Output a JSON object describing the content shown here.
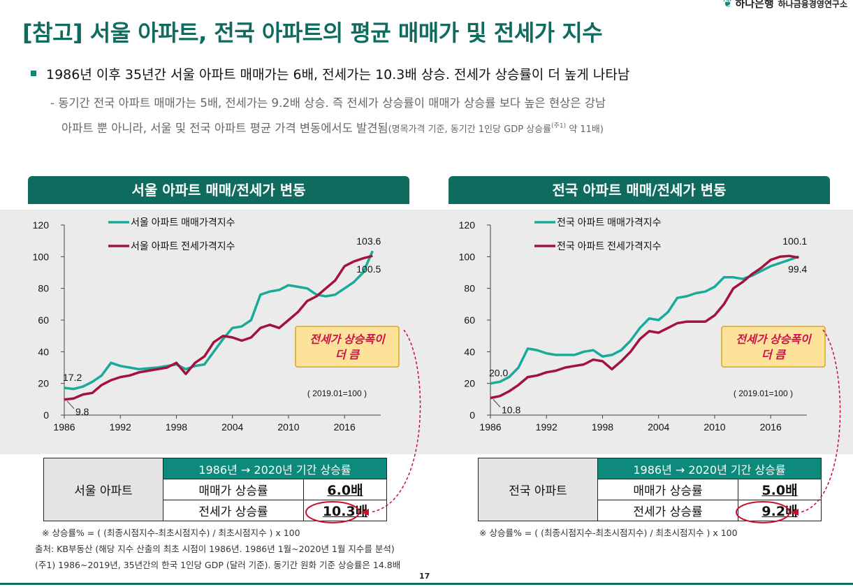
{
  "brand": {
    "logo_text": "하나은행",
    "institute": "하나금융경영연구소"
  },
  "title": "[참고] 서울 아파트, 전국 아파트의 평균 매매가 및 전세가 지수",
  "bullet": "1986년 이후 35년간 서울 아파트 매매가는 6배, 전세가는 10.3배 상승. 전세가 상승률이 더 높게 나타남",
  "sub_line1": "- 동기간 전국 아파트 매매가는 5배, 전세가는 9.2배 상승. 즉 전세가 상승률이 매매가 상승률 보다 높은 현상은 강남",
  "sub_line2_main": "아파트 뿐 아니라, 서울 및 전국 아파트 평균 가격 변동에서도 발견됨",
  "sub_line2_small_a": "(명목가격 기준, 동기간 1인당 GDP 상승률",
  "sub_line2_sup": "(주1)",
  "sub_line2_small_b": " 약 11배)",
  "colors": {
    "brand": "#0e6b5e",
    "teal": "#1aaa99",
    "crimson": "#a3123f",
    "callout_bg": "#fde29a",
    "callout_text": "#d0104c"
  },
  "chart_data": [
    {
      "type": "line",
      "title": "서울 아파트 매매/전세가 변동",
      "xlabel": "",
      "ylabel": "",
      "x": [
        1986,
        1987,
        1988,
        1989,
        1990,
        1991,
        1992,
        1993,
        1994,
        1995,
        1996,
        1997,
        1998,
        1999,
        2000,
        2001,
        2002,
        2003,
        2004,
        2005,
        2006,
        2007,
        2008,
        2009,
        2010,
        2011,
        2012,
        2013,
        2014,
        2015,
        2016,
        2017,
        2018,
        2019
      ],
      "xticks": [
        "1986",
        "1992",
        "1998",
        "2004",
        "2010",
        "2016"
      ],
      "ylim": [
        0,
        120
      ],
      "yticks": [
        "0",
        "20",
        "40",
        "60",
        "80",
        "100",
        "120"
      ],
      "series": [
        {
          "name": "서울 아파트 매매가격지수",
          "color": "#1aaa99",
          "values": [
            17.2,
            16.5,
            18,
            21,
            25,
            33,
            31,
            30,
            29,
            29.5,
            30,
            31,
            32,
            29,
            31,
            32,
            40,
            48,
            55,
            56,
            60,
            76,
            78,
            79,
            82,
            81,
            80,
            76,
            75,
            76,
            80,
            84,
            90,
            103.6
          ]
        },
        {
          "name": "서울 아파트 전세가격지수",
          "color": "#a3123f",
          "values": [
            9.8,
            10.5,
            13,
            14,
            19,
            22,
            24,
            25,
            27,
            28,
            29,
            30,
            33,
            26,
            33,
            37,
            46,
            50,
            49,
            47,
            49,
            55,
            57,
            55,
            60,
            65,
            72,
            75,
            80,
            85,
            94,
            97,
            99,
            100.5
          ]
        }
      ],
      "labels": {
        "start_sale": "17.2",
        "start_jeonse": "9.8",
        "end_sale": "103.6",
        "end_jeonse": "100.5"
      },
      "legend": "top-left",
      "base_note": "( 2019.01=100 )",
      "callout": [
        "전세가 상승폭이",
        "더 큼"
      ]
    },
    {
      "type": "line",
      "title": "전국 아파트 매매/전세가 변동",
      "xlabel": "",
      "ylabel": "",
      "x": [
        1986,
        1987,
        1988,
        1989,
        1990,
        1991,
        1992,
        1993,
        1994,
        1995,
        1996,
        1997,
        1998,
        1999,
        2000,
        2001,
        2002,
        2003,
        2004,
        2005,
        2006,
        2007,
        2008,
        2009,
        2010,
        2011,
        2012,
        2013,
        2014,
        2015,
        2016,
        2017,
        2018,
        2019
      ],
      "xticks": [
        "1986",
        "1992",
        "1998",
        "2004",
        "2010",
        "2016"
      ],
      "ylim": [
        0,
        120
      ],
      "yticks": [
        "0",
        "20",
        "40",
        "60",
        "80",
        "100",
        "120"
      ],
      "series": [
        {
          "name": "전국 아파트 매매가격지수",
          "color": "#1aaa99",
          "values": [
            20,
            21,
            24,
            30,
            42,
            41,
            39,
            38,
            38,
            38,
            40,
            41,
            37,
            38,
            41,
            47,
            55,
            61,
            60,
            65,
            74,
            75,
            77,
            78,
            81,
            87,
            87,
            86,
            88,
            91,
            94,
            96,
            98,
            100.1
          ]
        },
        {
          "name": "전국 아파트 전세가격지수",
          "color": "#a3123f",
          "values": [
            10.8,
            12,
            15,
            19,
            24,
            25,
            27,
            28,
            30,
            31,
            32,
            35,
            34,
            29,
            34,
            40,
            48,
            53,
            52,
            55,
            58,
            59,
            59,
            59,
            63,
            70,
            80,
            84,
            89,
            93,
            98,
            100,
            100.5,
            99.4
          ]
        }
      ],
      "labels": {
        "start_sale": "20.0",
        "start_jeonse": "10.8",
        "end_sale": "100.1",
        "end_jeonse": "99.4"
      },
      "legend": "top-left",
      "base_note": "( 2019.01=100 )",
      "callout": [
        "전세가 상승폭이",
        "더 큼"
      ]
    }
  ],
  "tables": {
    "seoul": {
      "row_header": "서울 아파트",
      "group": "1986년 → 2020년 기간 상승률",
      "sale_label": "매매가 상승률",
      "sale_value": "6.0배",
      "jeonse_label": "전세가 상승률",
      "jeonse_value": "10.3배"
    },
    "national": {
      "row_header": "전국 아파트",
      "group": "1986년 → 2020년 기간 상승률",
      "sale_label": "매매가 상승률",
      "sale_value": "5.0배",
      "jeonse_label": "전세가 상승률",
      "jeonse_value": "9.2배"
    }
  },
  "notes": {
    "formula": "※ 상승률% = ( (최종시점지수-최초시점지수) / 최초시점지수 ) x 100",
    "source": "출처: KB부동산 (해당 지수 산출의 최초 시점이 1986년. 1986년 1월~2020년 1월 지수를 분석)",
    "footnote": "(주1) 1986~2019년, 35년간의 한국 1인당 GDP (달러 기준). 동기간 원화 기준 상승률은 14.8배"
  },
  "page_number": "17"
}
